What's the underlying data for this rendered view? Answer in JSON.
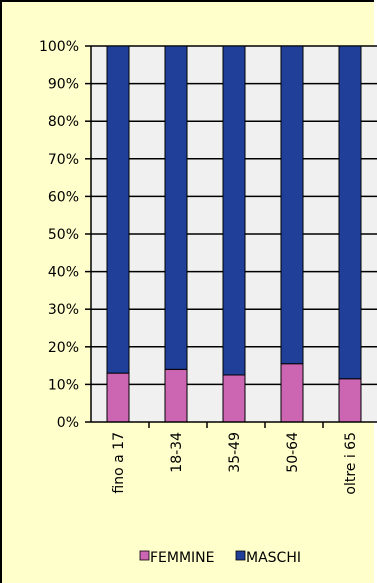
{
  "chart_data": {
    "type": "bar",
    "stacked": true,
    "percent": true,
    "categories": [
      "fino a 17",
      "18-34",
      "35-49",
      "50-64",
      "oltre i 65"
    ],
    "series": [
      {
        "name": "FEMMINE",
        "values": [
          13,
          14,
          12.5,
          15.5,
          11.5
        ],
        "color": "#cc66b3"
      },
      {
        "name": "MASCHI",
        "values": [
          87,
          86,
          87.5,
          84.5,
          88.5
        ],
        "color": "#1f3f99"
      }
    ],
    "ylim": [
      0,
      100
    ],
    "yticks": [
      "0%",
      "10%",
      "20%",
      "30%",
      "40%",
      "50%",
      "60%",
      "70%",
      "80%",
      "90%",
      "100%"
    ],
    "grid": true,
    "legend_position": "bottom",
    "plot_background": "#f0f0f0",
    "chart_background": "#ffffcc"
  }
}
